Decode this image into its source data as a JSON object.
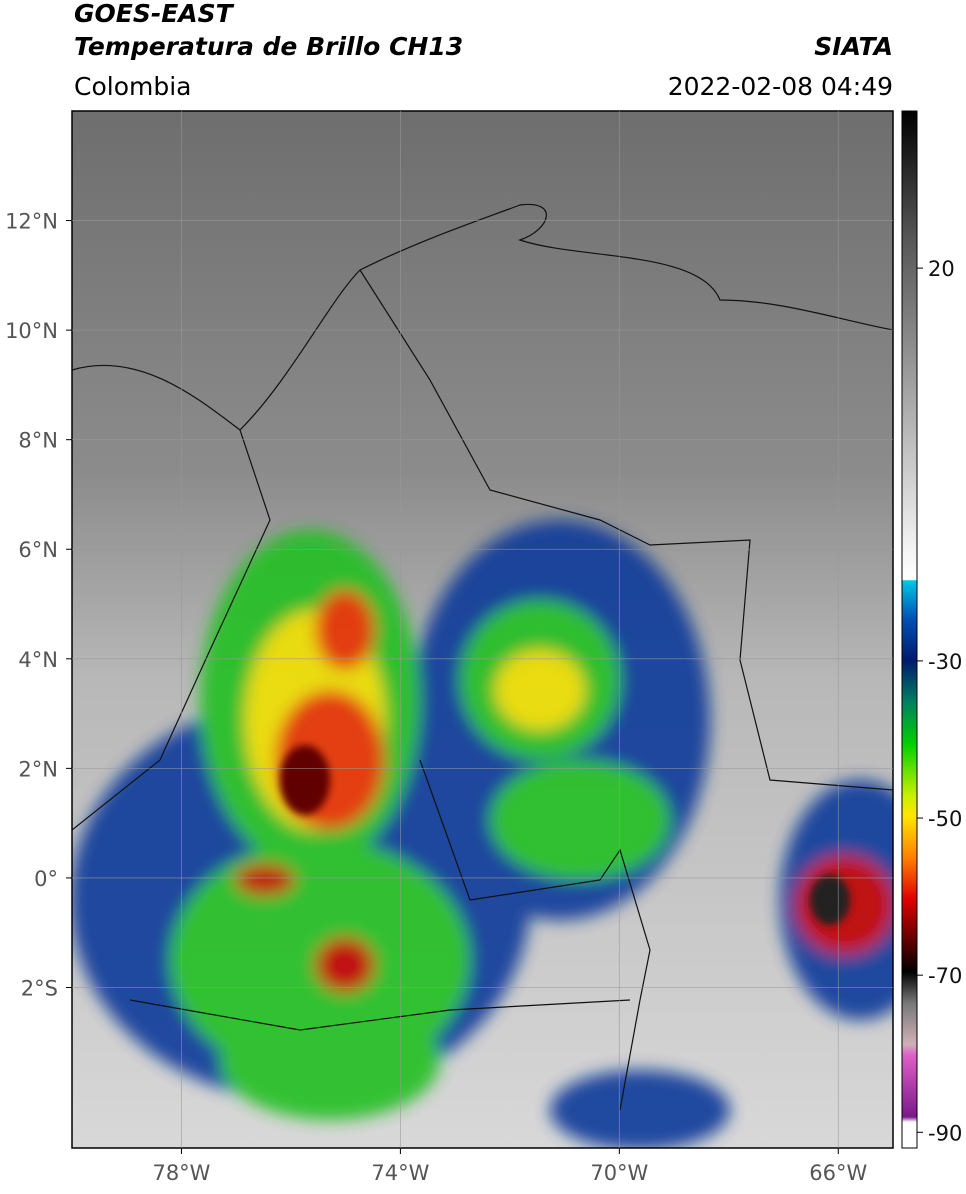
{
  "header": {
    "satellite": "GOES-EAST",
    "product": "Temperatura de Brillo CH13",
    "region": "Colombia",
    "source": "SIATA",
    "datetime": "2022-02-08 04:49"
  },
  "map": {
    "xlim": [
      -80,
      -65
    ],
    "ylim": [
      -4.93,
      14
    ],
    "xticks": [
      {
        "value": -78,
        "label": "78°W"
      },
      {
        "value": -74,
        "label": "74°W"
      },
      {
        "value": -70,
        "label": "70°W"
      },
      {
        "value": -66,
        "label": "66°W"
      }
    ],
    "yticks": [
      {
        "value": 12,
        "label": "12°N"
      },
      {
        "value": 10,
        "label": "10°N"
      },
      {
        "value": 8,
        "label": "8°N"
      },
      {
        "value": 6,
        "label": "6°N"
      },
      {
        "value": 4,
        "label": "4°N"
      },
      {
        "value": 2,
        "label": "2°N"
      },
      {
        "value": 0,
        "label": "0°"
      },
      {
        "value": -2,
        "label": "2°S"
      }
    ],
    "grid": true
  },
  "colorbar": {
    "lim": [
      -92,
      40
    ],
    "ticks": [
      20,
      -30,
      -50,
      -70,
      -90
    ]
  }
}
